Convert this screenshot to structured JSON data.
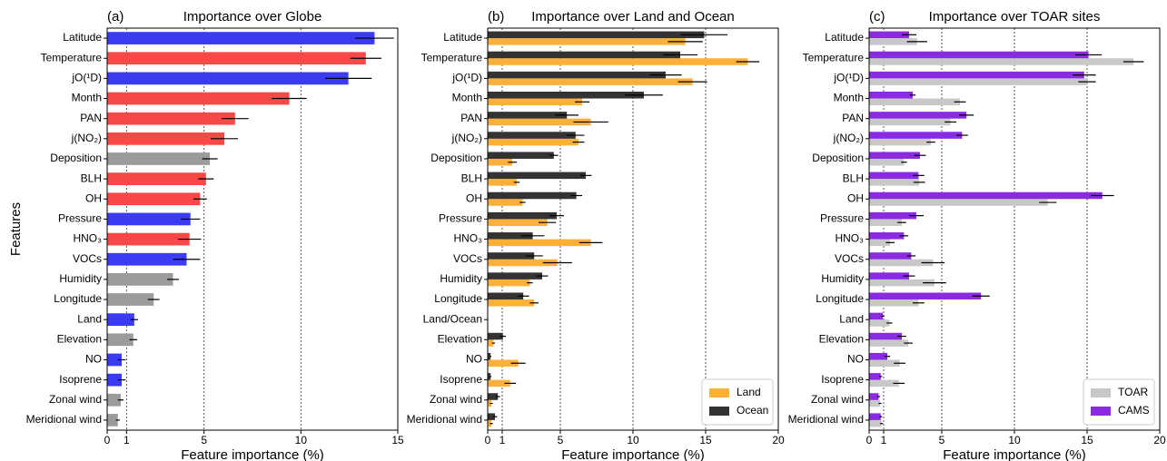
{
  "chart_data": [
    {
      "type": "barh",
      "panel_label": "(a)",
      "title": "Importance over Globe",
      "xlabel": "Feature importance (%)",
      "ylabel": "Features",
      "categories": [
        "Latitude",
        "Temperature",
        "jO(¹D)",
        "Month",
        "PAN",
        "j(NO₂)",
        "Deposition",
        "BLH",
        "OH",
        "Pressure",
        "HNO₃",
        "VOCs",
        "Humidity",
        "Longitude",
        "Land",
        "Elevation",
        "NO",
        "Isoprene",
        "Zonal wind",
        "Meridional wind"
      ],
      "values": [
        13.8,
        13.35,
        12.45,
        9.4,
        6.6,
        6.05,
        5.3,
        5.1,
        4.8,
        4.3,
        4.25,
        4.1,
        3.4,
        2.4,
        1.4,
        1.35,
        0.75,
        0.75,
        0.7,
        0.55
      ],
      "errors": [
        1.0,
        0.8,
        1.2,
        0.9,
        0.7,
        0.7,
        0.4,
        0.4,
        0.35,
        0.5,
        0.6,
        0.7,
        0.3,
        0.3,
        0.2,
        0.2,
        0.2,
        0.2,
        0.15,
        0.1
      ],
      "colors": [
        "#3b3bf2",
        "#f94848",
        "#3b3bf2",
        "#f94848",
        "#f94848",
        "#f94848",
        "#9b9b9b",
        "#f94848",
        "#f94848",
        "#3b3bf2",
        "#f94848",
        "#3b3bf2",
        "#9b9b9b",
        "#9b9b9b",
        "#3b3bf2",
        "#9b9b9b",
        "#3b3bf2",
        "#3b3bf2",
        "#9b9b9b",
        "#9b9b9b"
      ],
      "xlim": [
        0,
        15
      ],
      "xticks": [
        0,
        1,
        5,
        10,
        15
      ],
      "grid": true
    },
    {
      "type": "barh-grouped",
      "panel_label": "(b)",
      "title": "Importance over Land and Ocean",
      "xlabel": "Feature importance (%)",
      "categories": [
        "Latitude",
        "Temperature",
        "jO(¹D)",
        "Month",
        "PAN",
        "j(NO₂)",
        "Deposition",
        "BLH",
        "OH",
        "Pressure",
        "HNO₃",
        "VOCs",
        "Humidity",
        "Longitude",
        "Land/Ocean",
        "Elevation",
        "NO",
        "Isoprene",
        "Zonal wind",
        "Meridional wind"
      ],
      "series": [
        {
          "name": "Land",
          "color": "#fbb03b",
          "values": [
            13.6,
            17.9,
            14.1,
            6.5,
            7.1,
            6.25,
            1.7,
            2.0,
            2.4,
            4.1,
            7.1,
            4.8,
            2.9,
            3.2,
            0,
            0.4,
            2.1,
            1.55,
            0.25,
            0.25
          ],
          "errors": [
            1.2,
            0.8,
            1.0,
            0.5,
            1.2,
            0.4,
            0.3,
            0.2,
            0.2,
            0.6,
            0.8,
            1.0,
            0.2,
            0.3,
            0,
            0.1,
            0.5,
            0.4,
            0.1,
            0.1
          ]
        },
        {
          "name": "Ocean",
          "color": "#333333",
          "values": [
            14.9,
            13.25,
            12.25,
            10.75,
            5.45,
            6.05,
            4.55,
            6.75,
            6.1,
            4.75,
            3.1,
            3.2,
            3.75,
            2.45,
            0,
            1.05,
            0.2,
            0.2,
            0.7,
            0.5
          ],
          "errors": [
            1.6,
            1.2,
            1.1,
            1.3,
            0.8,
            0.6,
            0.3,
            0.4,
            0.4,
            0.5,
            0.8,
            0.6,
            0.4,
            0.4,
            0,
            0.2,
            0.05,
            0.05,
            0.15,
            0.15
          ]
        }
      ],
      "xlim": [
        0,
        20
      ],
      "xticks": [
        0,
        1,
        5,
        10,
        15,
        20
      ],
      "grid": true,
      "legend": "lower right"
    },
    {
      "type": "barh-grouped",
      "panel_label": "(c)",
      "title": "Importance over TOAR sites",
      "xlabel": "Feature importance (%)",
      "categories": [
        "Latitude",
        "Temperature",
        "jO(¹D)",
        "Month",
        "PAN",
        "j(NO₂)",
        "Deposition",
        "BLH",
        "OH",
        "Pressure",
        "HNO₃",
        "VOCs",
        "Humidity",
        "Longitude",
        "Land",
        "Elevation",
        "NO",
        "Isoprene",
        "Zonal wind",
        "Meridional wind"
      ],
      "series": [
        {
          "name": "TOAR",
          "color": "#c8c8c8",
          "values": [
            3.3,
            18.2,
            15.0,
            6.25,
            5.6,
            4.25,
            2.4,
            3.45,
            12.3,
            2.25,
            1.45,
            4.4,
            4.5,
            3.4,
            1.4,
            2.7,
            2.1,
            2.05,
            0.75,
            0.85
          ],
          "errors": [
            0.7,
            0.7,
            0.6,
            0.4,
            0.4,
            0.3,
            0.2,
            0.4,
            0.6,
            0.3,
            0.3,
            0.8,
            0.8,
            0.4,
            0.2,
            0.3,
            0.4,
            0.4,
            0.1,
            0.1
          ]
        },
        {
          "name": "CAMS",
          "color": "#8a2be2",
          "values": [
            2.75,
            15.1,
            14.8,
            3.0,
            6.7,
            6.4,
            3.5,
            3.4,
            16.05,
            3.25,
            2.4,
            2.9,
            2.75,
            7.7,
            0.95,
            2.25,
            1.25,
            0.8,
            0.65,
            0.8
          ],
          "errors": [
            0.5,
            0.9,
            0.8,
            0.2,
            0.5,
            0.4,
            0.4,
            0.4,
            0.8,
            0.5,
            0.3,
            0.3,
            0.4,
            0.6,
            0.1,
            0.3,
            0.2,
            0.1,
            0.1,
            0.1
          ]
        }
      ],
      "xlim": [
        0,
        20
      ],
      "xticks": [
        0,
        1,
        5,
        10,
        15,
        20
      ],
      "grid": true,
      "legend": "lower right"
    }
  ]
}
